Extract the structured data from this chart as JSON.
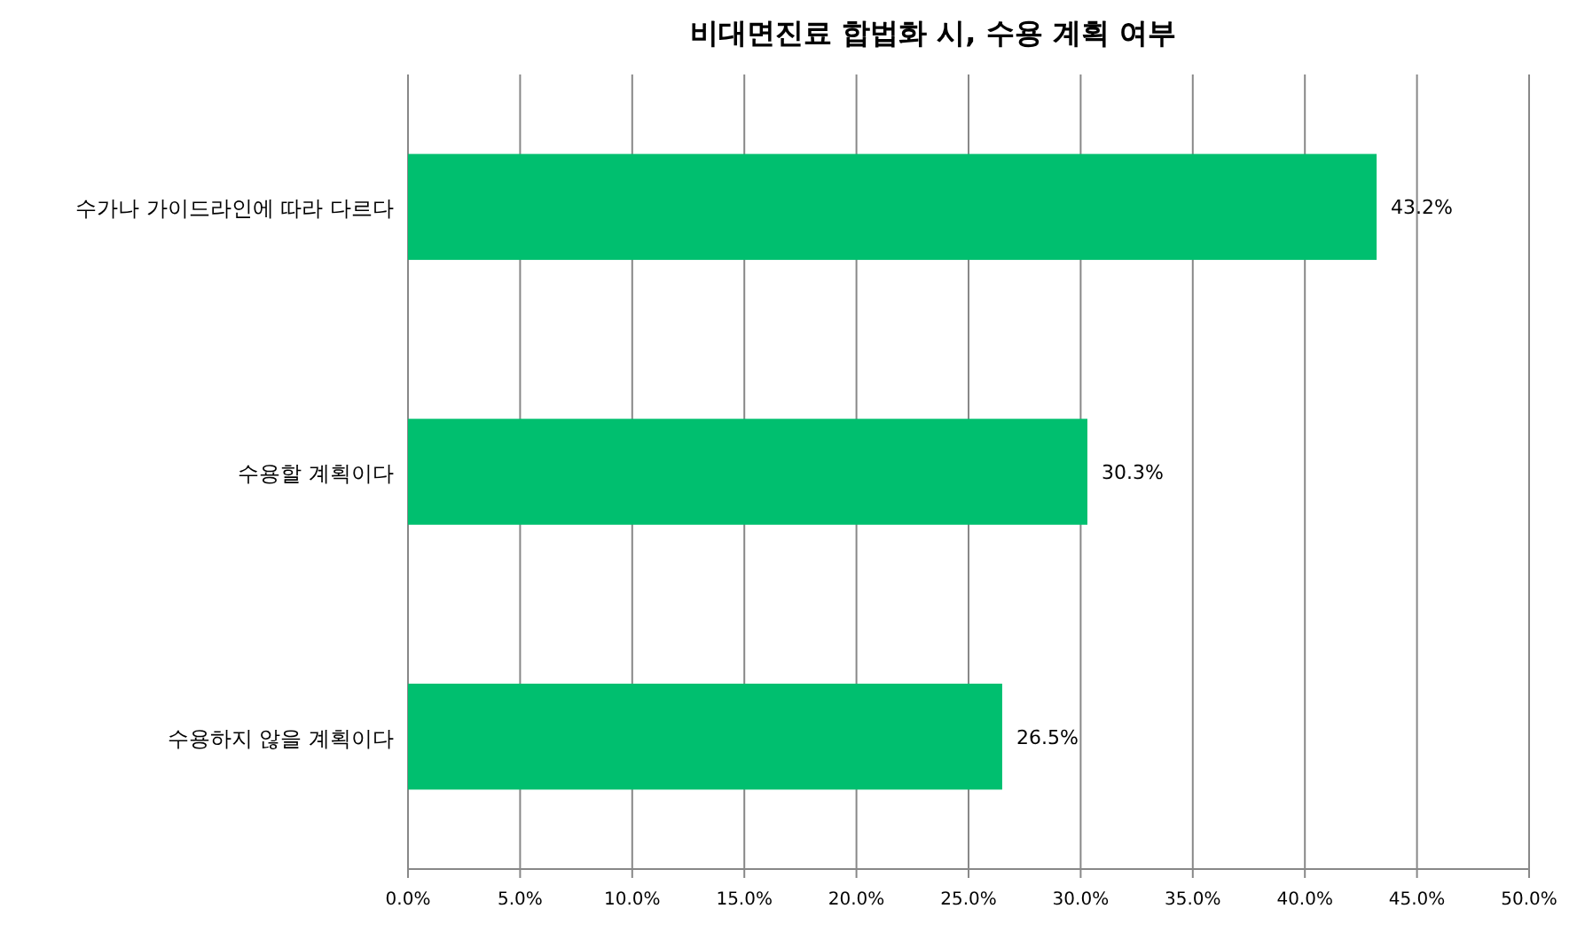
{
  "chart_data": {
    "type": "bar",
    "orientation": "horizontal",
    "title": "비대면진료 합법화 시, 수용 계획 여부",
    "categories": [
      "수가나 가이드라인에 따라 다르다",
      "수용할 계획이다",
      "수용하지 않을 계획이다"
    ],
    "values": [
      43.2,
      30.3,
      26.5
    ],
    "value_labels": [
      "43.2%",
      "30.3%",
      "26.5%"
    ],
    "color": "#00bf6f",
    "xlim": [
      0,
      50
    ],
    "xticks": [
      {
        "value": 0,
        "label": "0.0%"
      },
      {
        "value": 5,
        "label": "5.0%"
      },
      {
        "value": 10,
        "label": "10.0%"
      },
      {
        "value": 15,
        "label": "15.0%"
      },
      {
        "value": 20,
        "label": "20.0%"
      },
      {
        "value": 25,
        "label": "25.0%"
      },
      {
        "value": 30,
        "label": "30.0%"
      },
      {
        "value": 35,
        "label": "35.0%"
      },
      {
        "value": 40,
        "label": "40.0%"
      },
      {
        "value": 45,
        "label": "45.0%"
      },
      {
        "value": 50,
        "label": "50.0%"
      }
    ],
    "grid": "x"
  }
}
